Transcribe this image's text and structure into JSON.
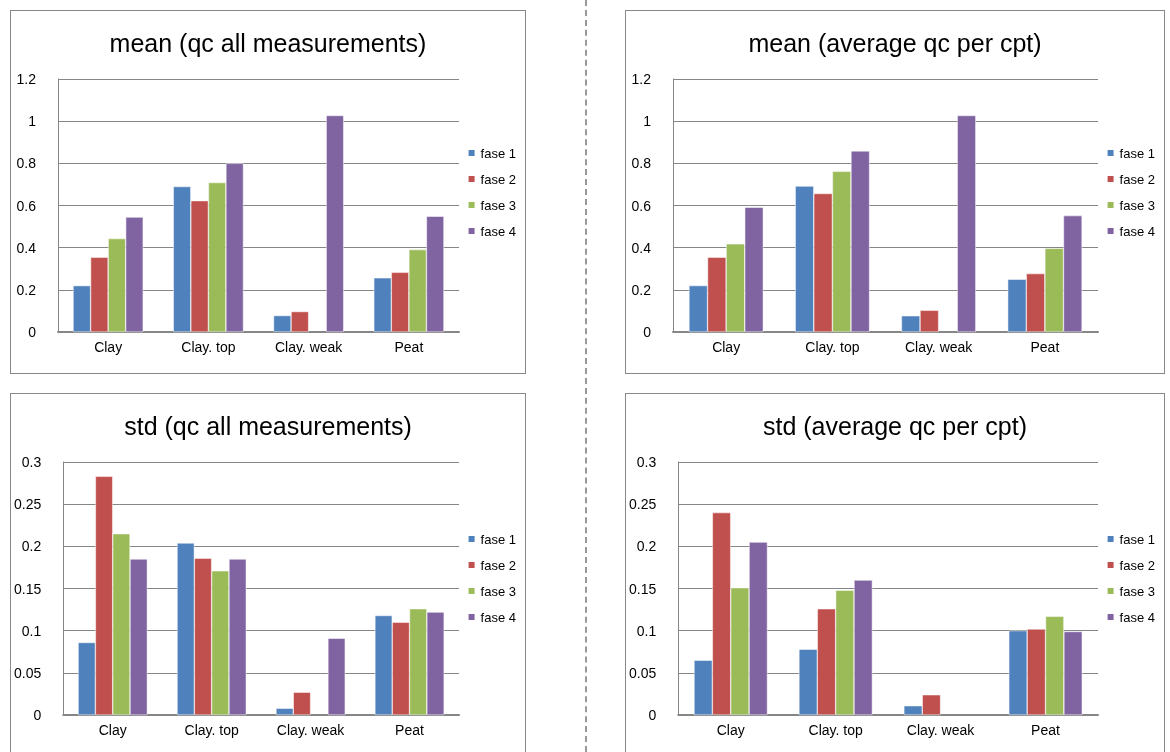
{
  "chart_data": [
    {
      "type": "bar",
      "title": "mean (qc all measurements)",
      "categories": [
        "Clay",
        "Clay. top",
        "Clay. weak",
        "Peat"
      ],
      "ylim": [
        0,
        1.2
      ],
      "yticks": [
        0,
        0.2,
        0.4,
        0.6,
        0.8,
        1,
        1.2
      ],
      "grid": "y",
      "legend": "right",
      "series": [
        {
          "name": "fase 1",
          "color": "#4f81bd",
          "values": [
            0.22,
            0.69,
            0.078,
            0.257
          ]
        },
        {
          "name": "fase 2",
          "color": "#c0504d",
          "values": [
            0.355,
            0.623,
            0.097,
            0.283
          ]
        },
        {
          "name": "fase 3",
          "color": "#9bbb59",
          "values": [
            0.443,
            0.709,
            null,
            0.391
          ]
        },
        {
          "name": "fase 4",
          "color": "#8064a2",
          "values": [
            0.545,
            0.8,
            1.027,
            0.549
          ]
        }
      ]
    },
    {
      "type": "bar",
      "title": "mean (average qc per cpt)",
      "categories": [
        "Clay",
        "Clay. top",
        "Clay. weak",
        "Peat"
      ],
      "ylim": [
        0,
        1.2
      ],
      "yticks": [
        0,
        0.2,
        0.4,
        0.6,
        0.8,
        1,
        1.2
      ],
      "grid": "y",
      "legend": "right",
      "series": [
        {
          "name": "fase 1",
          "color": "#4f81bd",
          "values": [
            0.22,
            0.692,
            0.077,
            0.25
          ]
        },
        {
          "name": "fase 2",
          "color": "#c0504d",
          "values": [
            0.355,
            0.657,
            0.103,
            0.277
          ]
        },
        {
          "name": "fase 3",
          "color": "#9bbb59",
          "values": [
            0.418,
            0.762,
            null,
            0.397
          ]
        },
        {
          "name": "fase 4",
          "color": "#8064a2",
          "values": [
            0.592,
            0.859,
            1.027,
            0.552
          ]
        }
      ]
    },
    {
      "type": "bar",
      "title": "std (qc all measurements)",
      "categories": [
        "Clay",
        "Clay. top",
        "Clay. weak",
        "Peat"
      ],
      "ylim": [
        0,
        0.3
      ],
      "yticks": [
        0,
        0.05,
        0.1,
        0.15,
        0.2,
        0.25,
        0.3
      ],
      "grid": "y",
      "legend": "right",
      "series": [
        {
          "name": "fase 1",
          "color": "#4f81bd",
          "values": [
            0.086,
            0.204,
            0.008,
            0.118
          ]
        },
        {
          "name": "fase 2",
          "color": "#c0504d",
          "values": [
            0.283,
            0.186,
            0.027,
            0.11
          ]
        },
        {
          "name": "fase 3",
          "color": "#9bbb59",
          "values": [
            0.215,
            0.171,
            null,
            0.126
          ]
        },
        {
          "name": "fase 4",
          "color": "#8064a2",
          "values": [
            0.185,
            0.185,
            0.091,
            0.122
          ]
        }
      ]
    },
    {
      "type": "bar",
      "title": "std (average qc per cpt)",
      "categories": [
        "Clay",
        "Clay. top",
        "Clay. weak",
        "Peat"
      ],
      "ylim": [
        0,
        0.3
      ],
      "yticks": [
        0,
        0.05,
        0.1,
        0.15,
        0.2,
        0.25,
        0.3
      ],
      "grid": "y",
      "legend": "right",
      "series": [
        {
          "name": "fase 1",
          "color": "#4f81bd",
          "values": [
            0.065,
            0.078,
            0.011,
            0.1
          ]
        },
        {
          "name": "fase 2",
          "color": "#c0504d",
          "values": [
            0.24,
            0.126,
            0.024,
            0.102
          ]
        },
        {
          "name": "fase 3",
          "color": "#9bbb59",
          "values": [
            0.151,
            0.148,
            null,
            0.117
          ]
        },
        {
          "name": "fase 4",
          "color": "#8064a2",
          "values": [
            0.205,
            0.16,
            null,
            0.099
          ]
        }
      ]
    }
  ]
}
